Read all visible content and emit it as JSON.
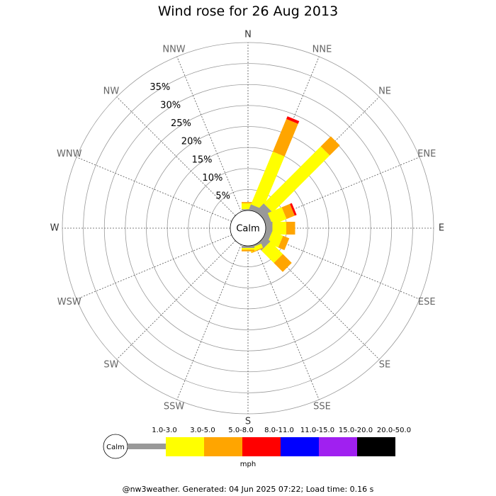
{
  "title": "Wind rose for 26 Aug 2013",
  "footer": "@nw3weather. Generated: 04 Jun 2025 07:22; Load time: 0.16 s",
  "chart_data": {
    "type": "wind-rose",
    "calm_label": "Calm",
    "unit_label": "mph",
    "directions": [
      "N",
      "NNE",
      "NE",
      "ENE",
      "E",
      "ESE",
      "SE",
      "SSE",
      "S",
      "SSW",
      "SW",
      "WSW",
      "W",
      "WNW",
      "NW",
      "NNW"
    ],
    "radial_axis": {
      "ticks": [
        5,
        10,
        15,
        20,
        25,
        30,
        35
      ],
      "tick_labels": [
        "5%",
        "10%",
        "15%",
        "20%",
        "25%",
        "30%",
        "35%"
      ],
      "max": 40
    },
    "speed_bins": [
      {
        "label": "1.0-3.0",
        "color": "#999999"
      },
      {
        "label": "3.0-5.0",
        "color": "#ffff00"
      },
      {
        "label": "5.0-8.0",
        "color": "#ffa500"
      },
      {
        "label": "8.0-11.0",
        "color": "#ff0000"
      },
      {
        "label": "11.0-15.0",
        "color": "#0000ff"
      },
      {
        "label": "15.0-20.0",
        "color": "#a020f0"
      },
      {
        "label": "20.0-50.0",
        "color": "#000000"
      }
    ],
    "series": [
      {
        "direction": "N",
        "values": [
          0.3,
          1.4,
          0.3,
          0,
          0,
          0,
          0
        ]
      },
      {
        "direction": "NNE",
        "values": [
          1.3,
          13.6,
          8.4,
          0.7,
          0,
          0,
          0
        ]
      },
      {
        "direction": "NE",
        "values": [
          2.6,
          19.2,
          3.4,
          0,
          0,
          0,
          0
        ]
      },
      {
        "direction": "ENE",
        "values": [
          1.5,
          3.6,
          2.1,
          0.5,
          0,
          0,
          0
        ]
      },
      {
        "direction": "E",
        "values": [
          1.6,
          3.3,
          2.1,
          0,
          0,
          0,
          0
        ]
      },
      {
        "direction": "ESE",
        "values": [
          1.4,
          2.8,
          1.6,
          0,
          0,
          0,
          0
        ]
      },
      {
        "direction": "SE",
        "values": [
          1.8,
          4.2,
          3.0,
          0,
          0,
          0,
          0
        ]
      },
      {
        "direction": "SSE",
        "values": [
          0.4,
          1.0,
          0.2,
          0,
          0,
          0,
          0
        ]
      },
      {
        "direction": "S",
        "values": [
          0.5,
          0.4,
          0.4,
          0,
          0,
          0,
          0
        ]
      },
      {
        "direction": "SSW",
        "values": [
          0,
          0,
          0,
          0,
          0,
          0,
          0
        ]
      },
      {
        "direction": "SW",
        "values": [
          0,
          0,
          0,
          0,
          0,
          0,
          0
        ]
      },
      {
        "direction": "WSW",
        "values": [
          0,
          0,
          0,
          0,
          0,
          0,
          0
        ]
      },
      {
        "direction": "W",
        "values": [
          0,
          0,
          0,
          0,
          0,
          0,
          0
        ]
      },
      {
        "direction": "WNW",
        "values": [
          0,
          0,
          0,
          0,
          0,
          0,
          0
        ]
      },
      {
        "direction": "NW",
        "values": [
          0,
          0,
          0,
          0,
          0,
          0,
          0
        ]
      },
      {
        "direction": "NNW",
        "values": [
          0,
          0,
          0,
          0,
          0,
          0,
          0
        ]
      }
    ]
  }
}
